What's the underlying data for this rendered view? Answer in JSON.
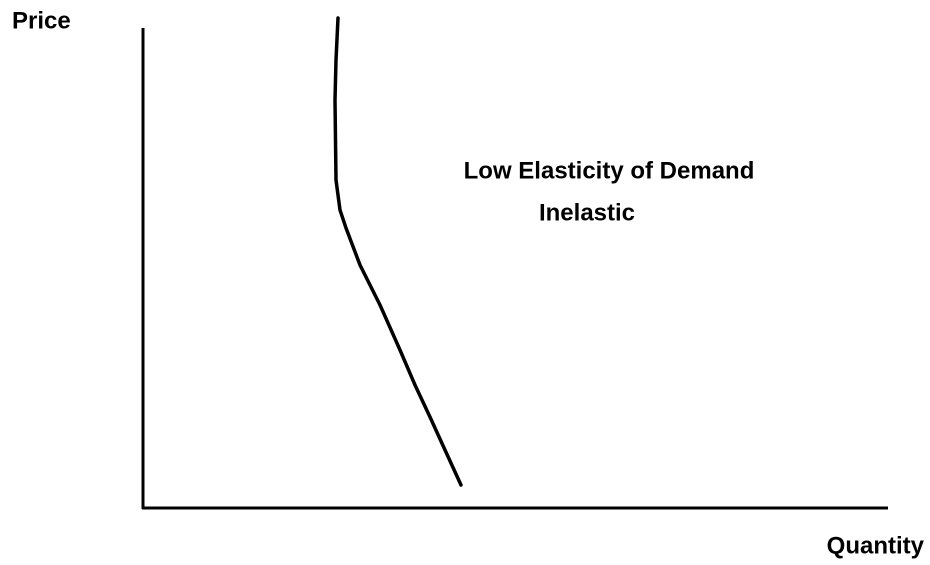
{
  "axes": {
    "y_label": "Price",
    "x_label": "Quantity"
  },
  "annotation": {
    "lines": [
      "Low Elasticity of Demand",
      "Inelastic"
    ]
  }
}
